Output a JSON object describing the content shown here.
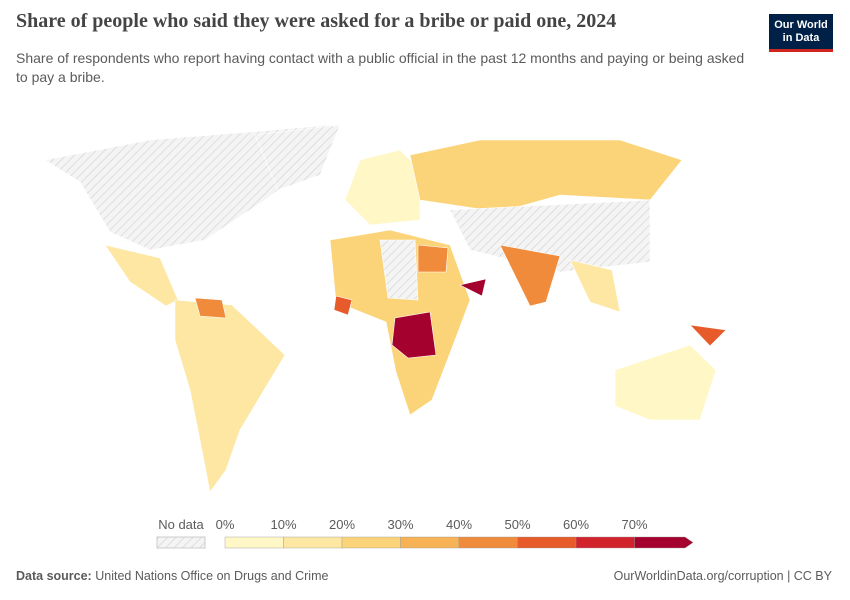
{
  "header": {
    "title": "Share of people who said they were asked for a bribe or paid one, 2024",
    "subtitle": "Share of respondents who report having contact with a public official in the past 12 months and paying or being asked to pay a bribe.",
    "logo": [
      "Our World",
      "in Data"
    ]
  },
  "legend": {
    "no_data_label": "No data",
    "labels": [
      "0%",
      "10%",
      "20%",
      "30%",
      "40%",
      "50%",
      "60%",
      "70%"
    ],
    "colors": [
      "#fff7c6",
      "#fde7a3",
      "#fbd47a",
      "#f6b254",
      "#f08b3b",
      "#e75a2a",
      "#d2232c",
      "#a4012f"
    ]
  },
  "footer": {
    "source_label": "Data source:",
    "source": "United Nations Office on Drugs and Crime",
    "link": "OurWorldinData.org/corruption | CC BY"
  }
}
